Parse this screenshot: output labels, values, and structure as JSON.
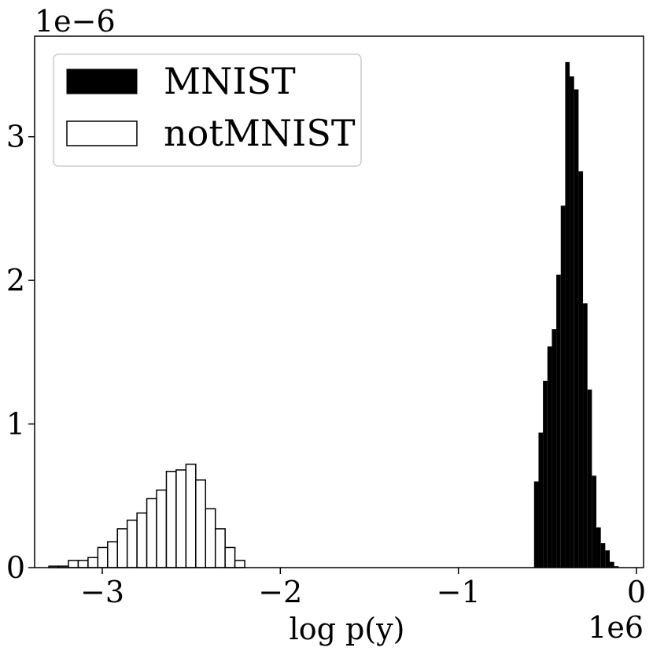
{
  "chart_data": {
    "type": "histogram",
    "title": "",
    "xlabel": "log p(y)",
    "ylabel": "",
    "x_offset_label": "1e6",
    "y_offset_label": "1e−6",
    "x_unit_scale": 1000000,
    "y_unit_scale": 1e-06,
    "xlim": [
      -3.38,
      0.04
    ],
    "ylim": [
      0,
      3.7
    ],
    "xticks": [
      -3,
      -2,
      -1,
      0
    ],
    "xtick_labels": [
      "−3",
      "−2",
      "−1",
      "0"
    ],
    "yticks": [
      0,
      1,
      2,
      3
    ],
    "ytick_labels": [
      "0",
      "1",
      "2",
      "3"
    ],
    "grid": false,
    "legend_position": "top-left",
    "series": [
      {
        "name": "MNIST",
        "style": "filled",
        "color": "#000000",
        "bins": [
          [
            -0.575,
            -0.55,
            0.6
          ],
          [
            -0.55,
            -0.525,
            0.94
          ],
          [
            -0.525,
            -0.5,
            1.3
          ],
          [
            -0.5,
            -0.475,
            1.54
          ],
          [
            -0.475,
            -0.45,
            1.66
          ],
          [
            -0.45,
            -0.425,
            2.04
          ],
          [
            -0.425,
            -0.4,
            2.52
          ],
          [
            -0.4,
            -0.375,
            3.52
          ],
          [
            -0.375,
            -0.35,
            3.42
          ],
          [
            -0.35,
            -0.325,
            3.33
          ],
          [
            -0.325,
            -0.3,
            2.76
          ],
          [
            -0.3,
            -0.275,
            1.84
          ],
          [
            -0.275,
            -0.25,
            1.24
          ],
          [
            -0.25,
            -0.225,
            0.64
          ],
          [
            -0.225,
            -0.2,
            0.28
          ],
          [
            -0.2,
            -0.175,
            0.17
          ],
          [
            -0.175,
            -0.15,
            0.12
          ],
          [
            -0.15,
            -0.125,
            0.04
          ],
          [
            -0.125,
            -0.1,
            0.01
          ]
        ]
      },
      {
        "name": "notMNIST",
        "style": "outline",
        "color": "#ffffff",
        "bins": [
          [
            -3.3,
            -3.245,
            0.01
          ],
          [
            -3.245,
            -3.19,
            0.01
          ],
          [
            -3.19,
            -3.135,
            0.05
          ],
          [
            -3.135,
            -3.08,
            0.05
          ],
          [
            -3.08,
            -3.025,
            0.07
          ],
          [
            -3.025,
            -2.97,
            0.14
          ],
          [
            -2.97,
            -2.915,
            0.18
          ],
          [
            -2.915,
            -2.86,
            0.27
          ],
          [
            -2.86,
            -2.805,
            0.33
          ],
          [
            -2.805,
            -2.75,
            0.38
          ],
          [
            -2.75,
            -2.695,
            0.48
          ],
          [
            -2.695,
            -2.64,
            0.54
          ],
          [
            -2.64,
            -2.585,
            0.67
          ],
          [
            -2.585,
            -2.53,
            0.68
          ],
          [
            -2.53,
            -2.475,
            0.72
          ],
          [
            -2.475,
            -2.42,
            0.61
          ],
          [
            -2.42,
            -2.365,
            0.41
          ],
          [
            -2.365,
            -2.31,
            0.27
          ],
          [
            -2.31,
            -2.255,
            0.14
          ],
          [
            -2.255,
            -2.2,
            0.05
          ]
        ]
      }
    ]
  }
}
